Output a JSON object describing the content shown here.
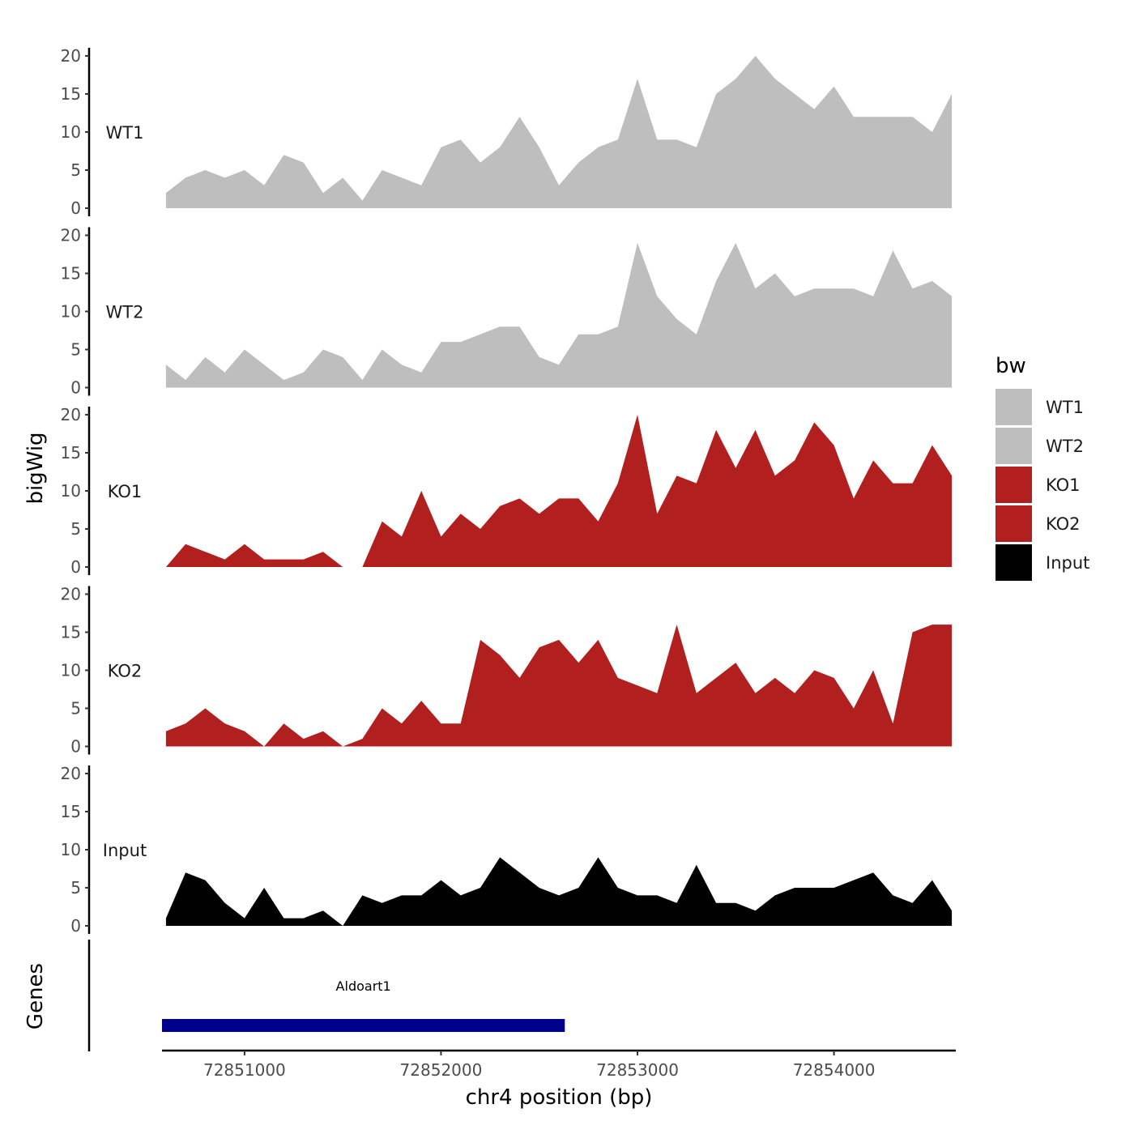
{
  "chart_data": {
    "type": "area",
    "panel_label": "bigWig",
    "genes_panel_label": "Genes",
    "xlabel": "chr4 position (bp)",
    "xlim": [
      72850580,
      72854620
    ],
    "x_ticks": [
      72851000,
      72852000,
      72853000,
      72854000
    ],
    "ylim": [
      0,
      20
    ],
    "y_ticks": [
      0,
      5,
      10,
      15,
      20
    ],
    "grid": false,
    "legend": {
      "title": "bw",
      "position": "right",
      "entries": [
        {
          "name": "WT1",
          "color": "#bebebe"
        },
        {
          "name": "WT2",
          "color": "#bebebe"
        },
        {
          "name": "KO1",
          "color": "#b21f1f"
        },
        {
          "name": "KO2",
          "color": "#b21f1f"
        },
        {
          "name": "Input",
          "color": "#000000"
        }
      ]
    },
    "x": [
      72850600,
      72850700,
      72850800,
      72850900,
      72851000,
      72851100,
      72851200,
      72851300,
      72851400,
      72851500,
      72851600,
      72851700,
      72851800,
      72851900,
      72852000,
      72852100,
      72852200,
      72852300,
      72852400,
      72852500,
      72852600,
      72852700,
      72852800,
      72852900,
      72853000,
      72853100,
      72853200,
      72853300,
      72853400,
      72853500,
      72853600,
      72853700,
      72853800,
      72853900,
      72854000,
      72854100,
      72854200,
      72854300,
      72854400,
      72854500,
      72854600
    ],
    "series": [
      {
        "name": "WT1",
        "color": "#bebebe",
        "values": [
          2,
          4,
          5,
          4,
          5,
          3,
          7,
          6,
          2,
          4,
          1,
          5,
          4,
          3,
          8,
          9,
          6,
          8,
          12,
          8,
          3,
          6,
          8,
          9,
          17,
          9,
          9,
          8,
          15,
          17,
          20,
          17,
          15,
          13,
          16,
          12,
          12,
          12,
          12,
          10,
          15
        ]
      },
      {
        "name": "WT2",
        "color": "#bebebe",
        "values": [
          3,
          1,
          4,
          2,
          5,
          3,
          1,
          2,
          5,
          4,
          1,
          5,
          3,
          2,
          6,
          6,
          7,
          8,
          8,
          4,
          3,
          7,
          7,
          8,
          19,
          12,
          9,
          7,
          14,
          19,
          13,
          15,
          12,
          13,
          13,
          13,
          12,
          18,
          13,
          14,
          12
        ]
      },
      {
        "name": "KO1",
        "color": "#b21f1f",
        "values": [
          0,
          3,
          2,
          1,
          3,
          1,
          1,
          1,
          2,
          0,
          0,
          6,
          4,
          10,
          4,
          7,
          5,
          8,
          9,
          7,
          9,
          9,
          6,
          11,
          20,
          7,
          12,
          11,
          18,
          13,
          18,
          12,
          14,
          19,
          16,
          9,
          14,
          11,
          11,
          16,
          12
        ]
      },
      {
        "name": "KO2",
        "color": "#b21f1f",
        "values": [
          2,
          3,
          5,
          3,
          2,
          0,
          3,
          1,
          2,
          0,
          1,
          5,
          3,
          6,
          3,
          3,
          14,
          12,
          9,
          13,
          14,
          11,
          14,
          9,
          8,
          7,
          16,
          7,
          9,
          11,
          7,
          9,
          7,
          10,
          9,
          5,
          10,
          3,
          15,
          16,
          16
        ]
      },
      {
        "name": "Input",
        "color": "#000000",
        "values": [
          1,
          7,
          6,
          3,
          1,
          5,
          1,
          1,
          2,
          0,
          4,
          3,
          4,
          4,
          6,
          4,
          5,
          9,
          7,
          5,
          4,
          5,
          9,
          5,
          4,
          4,
          3,
          8,
          3,
          3,
          2,
          4,
          5,
          5,
          5,
          6,
          7,
          4,
          3,
          6,
          2
        ]
      }
    ],
    "genes": [
      {
        "name": "Aldoart1",
        "start": 72850580,
        "end": 72852630,
        "color": "#00008b"
      }
    ]
  }
}
